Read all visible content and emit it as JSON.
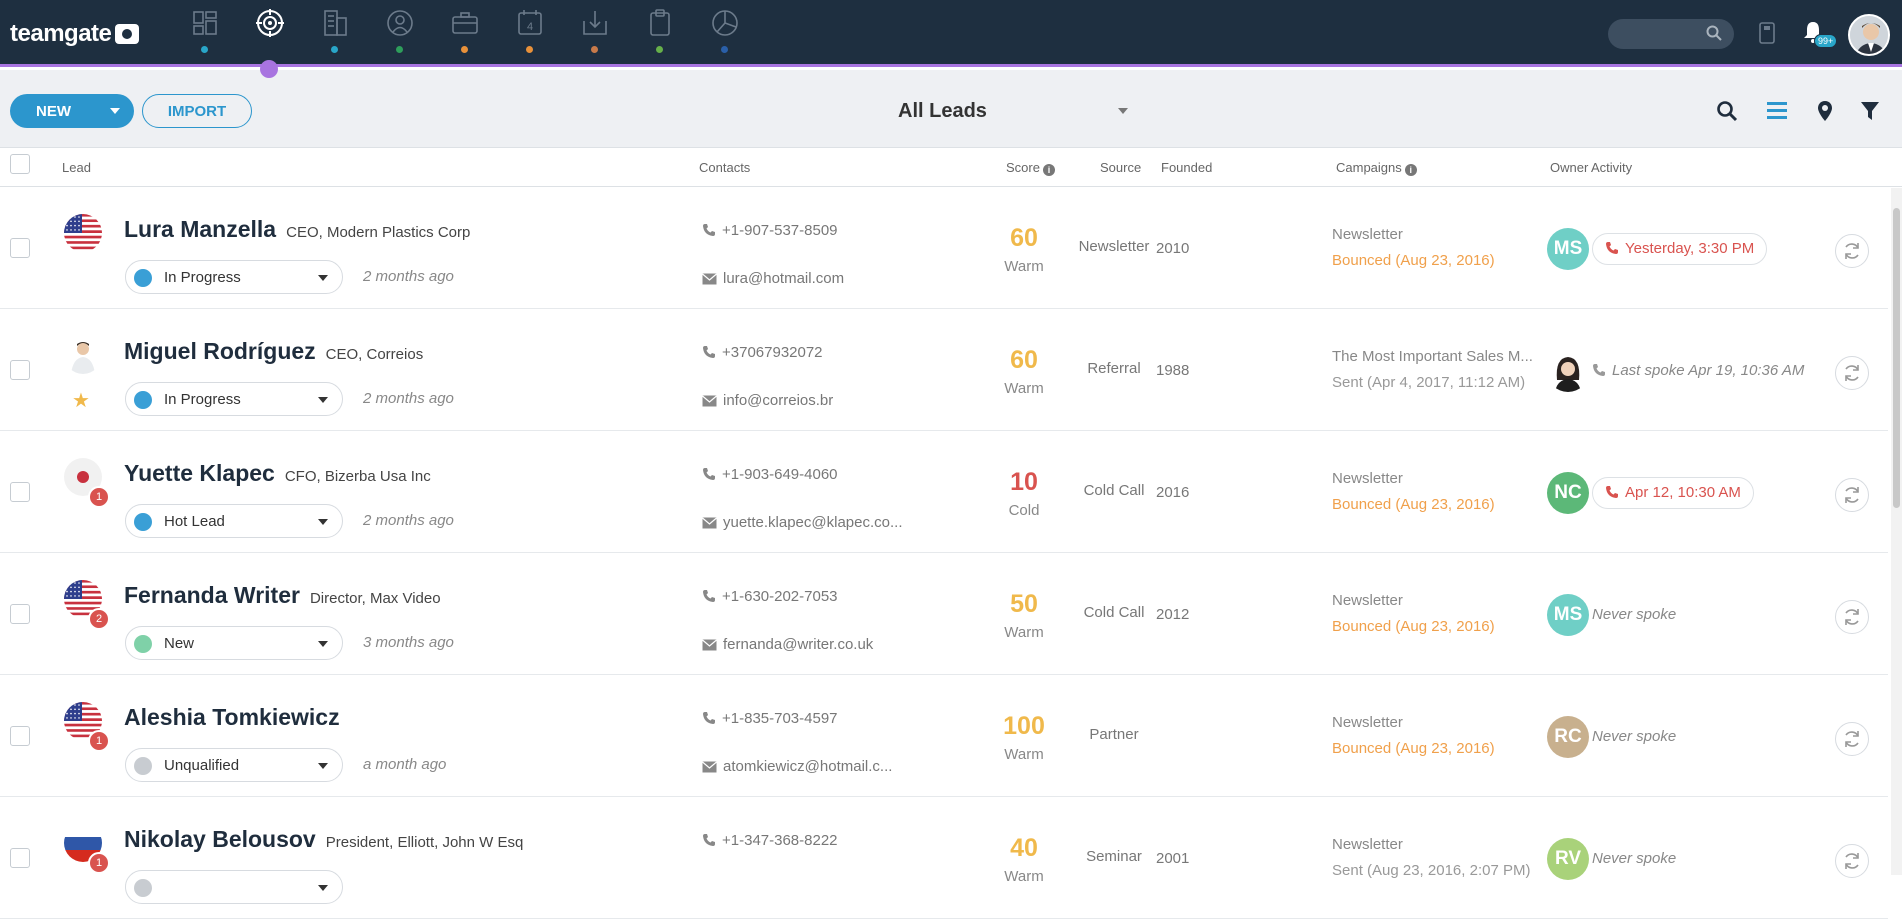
{
  "app": {
    "logo_text": "teamgate"
  },
  "nav": {
    "icons": [
      {
        "name": "dashboard-icon",
        "dot": "#29a6c9",
        "active": false
      },
      {
        "name": "leads-target-icon",
        "dot": "",
        "active": true
      },
      {
        "name": "companies-building-icon",
        "dot": "#29a6c9",
        "active": false
      },
      {
        "name": "contacts-person-icon",
        "dot": "#2e9e5b",
        "active": false
      },
      {
        "name": "deals-briefcase-icon",
        "dot": "#e8913a",
        "active": false
      },
      {
        "name": "calendar-icon",
        "dot": "#e8913a",
        "active": false
      },
      {
        "name": "inbox-download-icon",
        "dot": "#c87a4a",
        "active": false
      },
      {
        "name": "clipboard-icon",
        "dot": "#66b04a",
        "active": false
      },
      {
        "name": "reports-pie-icon",
        "dot": "#2a5fa8",
        "active": false
      }
    ],
    "calendar_day": "4",
    "notifications_count": "99+"
  },
  "toolbar": {
    "new_label": "NEW",
    "import_label": "IMPORT",
    "view_label": "All Leads"
  },
  "table": {
    "headers": {
      "lead": "Lead",
      "contacts": "Contacts",
      "score": "Score",
      "source": "Source",
      "founded": "Founded",
      "campaigns": "Campaigns",
      "owner": "Owner",
      "activity": "Activity"
    },
    "rows": [
      {
        "name": "Lura Manzella",
        "title": "CEO, Modern Plastics Corp",
        "avatar": "us-flag",
        "badge": "",
        "starred": false,
        "status": "In Progress",
        "status_color": "#3a9fd6",
        "ago": "2 months ago",
        "phone": "+1-907-537-8509",
        "email": "lura@hotmail.com",
        "score": "60",
        "score_color": "#f0b94b",
        "temp": "Warm",
        "source": "Newsletter",
        "founded": "2010",
        "campaign": "Newsletter",
        "campaign_status": "Bounced (Aug 23, 2016)",
        "campaign_status_color": "#f0a04b",
        "owner": "MS",
        "owner_color": "#6fcfc6",
        "owner_photo": false,
        "activity": "Yesterday, 3:30 PM",
        "activity_style": "pill"
      },
      {
        "name": "Miguel Rodríguez",
        "title": "CEO, Correios",
        "avatar": "person-photo",
        "badge": "",
        "starred": true,
        "status": "In Progress",
        "status_color": "#3a9fd6",
        "ago": "2 months ago",
        "phone": "+37067932072",
        "email": "info@correios.br",
        "score": "60",
        "score_color": "#f0b94b",
        "temp": "Warm",
        "source": "Referral",
        "founded": "1988",
        "campaign": "The Most Important Sales M...",
        "campaign_status": "Sent (Apr 4, 2017, 11:12 AM)",
        "campaign_status_color": "#999999",
        "owner": "",
        "owner_color": "#ffffff",
        "owner_photo": true,
        "activity": "Last spoke Apr 19, 10:36 AM",
        "activity_style": "plain-phone"
      },
      {
        "name": "Yuette Klapec",
        "title": "CFO, Bizerba Usa Inc",
        "avatar": "jp-flag",
        "badge": "1",
        "starred": false,
        "status": "Hot Lead",
        "status_color": "#3a9fd6",
        "ago": "2 months ago",
        "phone": "+1-903-649-4060",
        "email": "yuette.klapec@klapec.co...",
        "score": "10",
        "score_color": "#d9534f",
        "temp": "Cold",
        "source": "Cold Call",
        "founded": "2016",
        "campaign": "Newsletter",
        "campaign_status": "Bounced (Aug 23, 2016)",
        "campaign_status_color": "#f0a04b",
        "owner": "NC",
        "owner_color": "#5cb878",
        "owner_photo": false,
        "activity": "Apr 12, 10:30 AM",
        "activity_style": "pill"
      },
      {
        "name": "Fernanda Writer",
        "title": "Director, Max Video",
        "avatar": "us-flag",
        "badge": "2",
        "starred": false,
        "status": "New",
        "status_color": "#7fd1a8",
        "ago": "3 months ago",
        "phone": "+1-630-202-7053",
        "email": "fernanda@writer.co.uk",
        "score": "50",
        "score_color": "#f0b94b",
        "temp": "Warm",
        "source": "Cold Call",
        "founded": "2012",
        "campaign": "Newsletter",
        "campaign_status": "Bounced (Aug 23, 2016)",
        "campaign_status_color": "#f0a04b",
        "owner": "MS",
        "owner_color": "#6fcfc6",
        "owner_photo": false,
        "activity": "Never spoke",
        "activity_style": "plain"
      },
      {
        "name": "Aleshia Tomkiewicz",
        "title": "",
        "avatar": "us-flag",
        "badge": "1",
        "starred": false,
        "status": "Unqualified",
        "status_color": "#c8ccd1",
        "ago": "a month ago",
        "phone": "+1-835-703-4597",
        "email": "atomkiewicz@hotmail.c...",
        "score": "100",
        "score_color": "#f0b94b",
        "temp": "Warm",
        "source": "Partner",
        "founded": "",
        "campaign": "Newsletter",
        "campaign_status": "Bounced (Aug 23, 2016)",
        "campaign_status_color": "#f0a04b",
        "owner": "RC",
        "owner_color": "#c8b08e",
        "owner_photo": false,
        "activity": "Never spoke",
        "activity_style": "plain"
      },
      {
        "name": "Nikolay Belousov",
        "title": "President, Elliott, John W Esq",
        "avatar": "ru-flag",
        "badge": "1",
        "starred": false,
        "status": "",
        "status_color": "#c8ccd1",
        "ago": "",
        "phone": "+1-347-368-8222",
        "email": "",
        "score": "40",
        "score_color": "#f0b94b",
        "temp": "Warm",
        "source": "Seminar",
        "founded": "2001",
        "campaign": "Newsletter",
        "campaign_status": "Sent (Aug 23, 2016, 2:07 PM)",
        "campaign_status_color": "#999999",
        "owner": "RV",
        "owner_color": "#a9d27a",
        "owner_photo": false,
        "activity": "Never spoke",
        "activity_style": "plain"
      }
    ]
  }
}
